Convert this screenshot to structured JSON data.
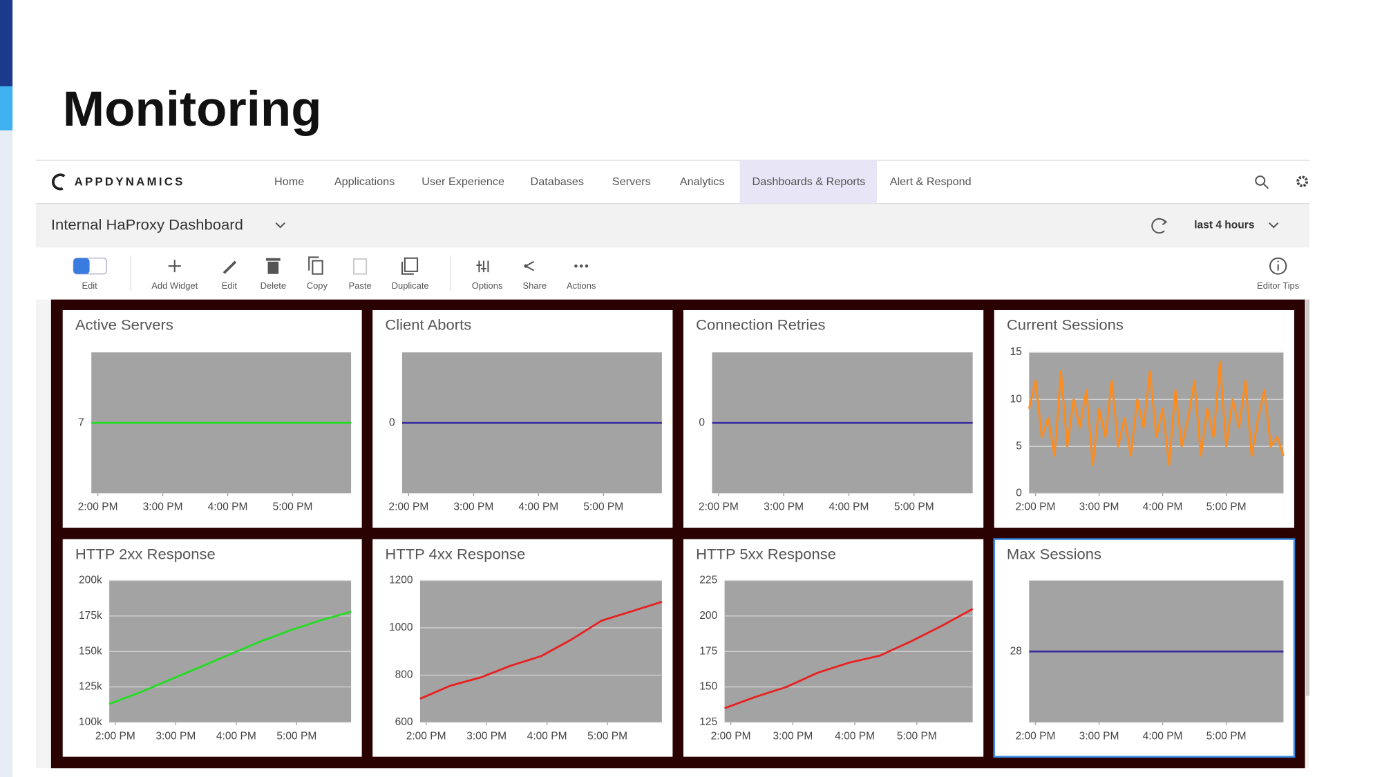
{
  "slide_title": "Monitoring",
  "brand": "APPDYNAMICS",
  "nav": [
    "Home",
    "Applications",
    "User Experience",
    "Databases",
    "Servers",
    "Analytics",
    "Dashboards & Reports",
    "Alert & Respond"
  ],
  "dashboard_title": "Internal HaProxy Dashboard",
  "time_range": "last 4 hours",
  "toolbar": [
    "Edit",
    "Add Widget",
    "Edit",
    "Delete",
    "Copy",
    "Paste",
    "Duplicate",
    "Options",
    "Share",
    "Actions",
    "Editor Tips"
  ],
  "chart_data": [
    {
      "type": "line",
      "title": "Active Servers",
      "color": "#22dd22",
      "grid": true,
      "x": [
        13.9,
        17.9
      ],
      "values": [
        7,
        7
      ],
      "xlim": [
        13.9,
        17.9
      ],
      "ylim": [
        6,
        8
      ],
      "yticks": [
        7
      ],
      "xticks": [
        {
          "value": 14,
          "label": "2:00 PM"
        },
        {
          "value": 15,
          "label": "3:00 PM"
        },
        {
          "value": 16,
          "label": "4:00 PM"
        },
        {
          "value": 17,
          "label": "5:00 PM"
        }
      ]
    },
    {
      "type": "line",
      "title": "Client Aborts",
      "color": "#3a2ea0",
      "grid": true,
      "x": [
        13.9,
        17.9
      ],
      "values": [
        0,
        0
      ],
      "xlim": [
        13.9,
        17.9
      ],
      "ylim": [
        -1,
        1
      ],
      "yticks": [
        0
      ],
      "xticks": [
        {
          "value": 14,
          "label": "2:00 PM"
        },
        {
          "value": 15,
          "label": "3:00 PM"
        },
        {
          "value": 16,
          "label": "4:00 PM"
        },
        {
          "value": 17,
          "label": "5:00 PM"
        }
      ]
    },
    {
      "type": "line",
      "title": "Connection Retries",
      "color": "#3a2ea0",
      "grid": true,
      "x": [
        13.9,
        17.9
      ],
      "values": [
        0,
        0
      ],
      "xlim": [
        13.9,
        17.9
      ],
      "ylim": [
        -1,
        1
      ],
      "yticks": [
        0
      ],
      "xticks": [
        {
          "value": 14,
          "label": "2:00 PM"
        },
        {
          "value": 15,
          "label": "3:00 PM"
        },
        {
          "value": 16,
          "label": "4:00 PM"
        },
        {
          "value": 17,
          "label": "5:00 PM"
        }
      ]
    },
    {
      "type": "line",
      "title": "Current Sessions",
      "color": "#ff8c1a",
      "grid": true,
      "x": [
        13.9,
        14,
        14.1,
        14.2,
        14.3,
        14.4,
        14.5,
        14.6,
        14.7,
        14.8,
        14.9,
        15,
        15.1,
        15.2,
        15.3,
        15.4,
        15.5,
        15.6,
        15.7,
        15.8,
        15.9,
        16,
        16.1,
        16.2,
        16.3,
        16.4,
        16.5,
        16.6,
        16.7,
        16.8,
        16.9,
        17,
        17.1,
        17.2,
        17.3,
        17.4,
        17.5,
        17.6,
        17.7,
        17.8,
        17.9
      ],
      "values": [
        9,
        12,
        6,
        8,
        4,
        13,
        5,
        10,
        7,
        11,
        3,
        9,
        6,
        12,
        5,
        8,
        4,
        10,
        7,
        13,
        6,
        9,
        3,
        11,
        5,
        8,
        12,
        4,
        9,
        6,
        14,
        5,
        10,
        7,
        12,
        4,
        8,
        11,
        5,
        6,
        4
      ],
      "xlim": [
        13.9,
        17.9
      ],
      "ylim": [
        0,
        15
      ],
      "yticks": [
        0,
        5,
        10,
        15
      ],
      "xticks": [
        {
          "value": 14,
          "label": "2:00 PM"
        },
        {
          "value": 15,
          "label": "3:00 PM"
        },
        {
          "value": 16,
          "label": "4:00 PM"
        },
        {
          "value": 17,
          "label": "5:00 PM"
        }
      ]
    },
    {
      "type": "line",
      "title": "HTTP 2xx Response",
      "color": "#22dd22",
      "grid": true,
      "x": [
        13.9,
        14.4,
        14.9,
        15.4,
        15.9,
        16.4,
        16.9,
        17.4,
        17.9
      ],
      "values": [
        113000,
        121000,
        130000,
        139000,
        148000,
        157000,
        165000,
        172000,
        178000
      ],
      "xlim": [
        13.9,
        17.9
      ],
      "ylim": [
        100000,
        200000
      ],
      "yticks": [
        {
          "value": 100000,
          "label": "100k"
        },
        {
          "value": 125000,
          "label": "125k"
        },
        {
          "value": 150000,
          "label": "150k"
        },
        {
          "value": 175000,
          "label": "175k"
        },
        {
          "value": 200000,
          "label": "200k"
        }
      ],
      "xticks": [
        {
          "value": 14,
          "label": "2:00 PM"
        },
        {
          "value": 15,
          "label": "3:00 PM"
        },
        {
          "value": 16,
          "label": "4:00 PM"
        },
        {
          "value": 17,
          "label": "5:00 PM"
        }
      ]
    },
    {
      "type": "line",
      "title": "HTTP 4xx Response",
      "color": "#e82020",
      "grid": true,
      "x": [
        13.9,
        14.4,
        14.9,
        15.4,
        15.9,
        16.4,
        16.9,
        17.4,
        17.9
      ],
      "values": [
        700,
        755,
        790,
        840,
        880,
        950,
        1030,
        1070,
        1110
      ],
      "xlim": [
        13.9,
        17.9
      ],
      "ylim": [
        600,
        1200
      ],
      "yticks": [
        600,
        800,
        1000,
        1200
      ],
      "xticks": [
        {
          "value": 14,
          "label": "2:00 PM"
        },
        {
          "value": 15,
          "label": "3:00 PM"
        },
        {
          "value": 16,
          "label": "4:00 PM"
        },
        {
          "value": 17,
          "label": "5:00 PM"
        }
      ]
    },
    {
      "type": "line",
      "title": "HTTP 5xx Response",
      "color": "#e82020",
      "grid": true,
      "x": [
        13.9,
        14.4,
        14.9,
        15.4,
        15.9,
        16.4,
        16.9,
        17.4,
        17.9
      ],
      "values": [
        135,
        143,
        150,
        160,
        167,
        172,
        182,
        193,
        205
      ],
      "xlim": [
        13.9,
        17.9
      ],
      "ylim": [
        125,
        225
      ],
      "yticks": [
        125,
        150,
        175,
        200,
        225
      ],
      "xticks": [
        {
          "value": 14,
          "label": "2:00 PM"
        },
        {
          "value": 15,
          "label": "3:00 PM"
        },
        {
          "value": 16,
          "label": "4:00 PM"
        },
        {
          "value": 17,
          "label": "5:00 PM"
        }
      ]
    },
    {
      "type": "line",
      "title": "Max Sessions",
      "color": "#3a2ea0",
      "grid": true,
      "x": [
        13.9,
        17.9
      ],
      "values": [
        28,
        28
      ],
      "xlim": [
        13.9,
        17.9
      ],
      "ylim": [
        27,
        29
      ],
      "yticks": [
        28
      ],
      "xticks": [
        {
          "value": 14,
          "label": "2:00 PM"
        },
        {
          "value": 15,
          "label": "3:00 PM"
        },
        {
          "value": 16,
          "label": "4:00 PM"
        },
        {
          "value": 17,
          "label": "5:00 PM"
        }
      ]
    }
  ]
}
